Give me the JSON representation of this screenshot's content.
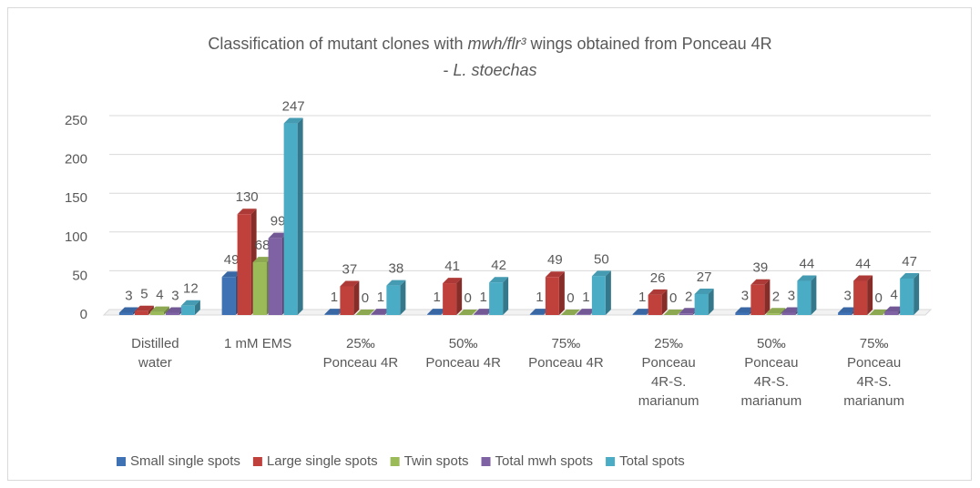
{
  "chart_data": {
    "type": "bar",
    "title": [
      "Classification of mutant clones with ",
      "mwh/flr³",
      " wings obtained from Ponceau 4R",
      "-  ",
      "L. stoechas"
    ],
    "categories": [
      [
        "Distilled",
        "water"
      ],
      [
        "1 mM EMS"
      ],
      [
        "25‰",
        "Ponceau 4R"
      ],
      [
        "50‰",
        "Ponceau 4R"
      ],
      [
        "75‰",
        "Ponceau 4R"
      ],
      [
        "25‰",
        "Ponceau",
        "4R-S.",
        "marianum"
      ],
      [
        "50‰",
        "Ponceau",
        "4R-S.",
        "marianum"
      ],
      [
        "75‰",
        "Ponceau",
        "4R-S.",
        "marianum"
      ]
    ],
    "series": [
      {
        "name": "Small single spots",
        "color": "#3f72b5",
        "values": [
          3,
          49,
          1,
          1,
          1,
          1,
          3,
          3
        ]
      },
      {
        "name": "Large single spots",
        "color": "#c0403c",
        "values": [
          5,
          130,
          37,
          41,
          49,
          26,
          39,
          44
        ]
      },
      {
        "name": "Twin spots",
        "color": "#9bbb59",
        "values": [
          4,
          68,
          0,
          0,
          0,
          0,
          2,
          0
        ]
      },
      {
        "name": "Total mwh spots",
        "color": "#7f62a4",
        "values": [
          3,
          99,
          1,
          1,
          1,
          2,
          3,
          4
        ]
      },
      {
        "name": "Total spots",
        "color": "#4bacc6",
        "values": [
          12,
          247,
          38,
          42,
          50,
          27,
          44,
          47
        ]
      }
    ],
    "ylim": [
      0,
      250
    ],
    "yticks": [
      0,
      50,
      100,
      150,
      200,
      250
    ],
    "grid": true,
    "legend": "bottom"
  }
}
